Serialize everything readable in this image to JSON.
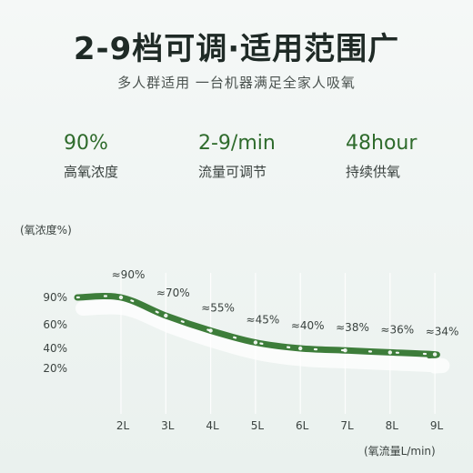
{
  "header": {
    "title": "2-9档可调·适用范围广",
    "subtitle": "多人群适用  一台机器满足全家人吸氧"
  },
  "stats": [
    {
      "value": "90%",
      "label": "高氧浓度"
    },
    {
      "value": "2-9/min",
      "label": "流量可调节"
    },
    {
      "value": "48hour",
      "label": "持续供氧"
    }
  ],
  "colors": {
    "accent": "#2f6b2c",
    "line": "#3d7d3a"
  },
  "chart_data": {
    "type": "line",
    "ylabel": "(氧浓度%)",
    "xlabel": "(氧流量L/min)",
    "x": [
      2,
      3,
      4,
      5,
      6,
      7,
      8,
      9
    ],
    "x_tick_labels": [
      "2L",
      "3L",
      "4L",
      "5L",
      "6L",
      "7L",
      "8L",
      "9L"
    ],
    "y_tick_values": [
      90,
      60,
      40,
      20
    ],
    "y_tick_labels": [
      "90%",
      "60%",
      "40%",
      "20%"
    ],
    "series": [
      {
        "values": [
          90,
          70,
          55,
          45,
          40,
          38,
          36,
          34
        ],
        "labels": [
          "≈90%",
          "≈70%",
          "≈55%",
          "≈45%",
          "≈40%",
          "≈38%",
          "≈36%",
          "≈34%"
        ]
      }
    ],
    "grid": "vertical"
  }
}
